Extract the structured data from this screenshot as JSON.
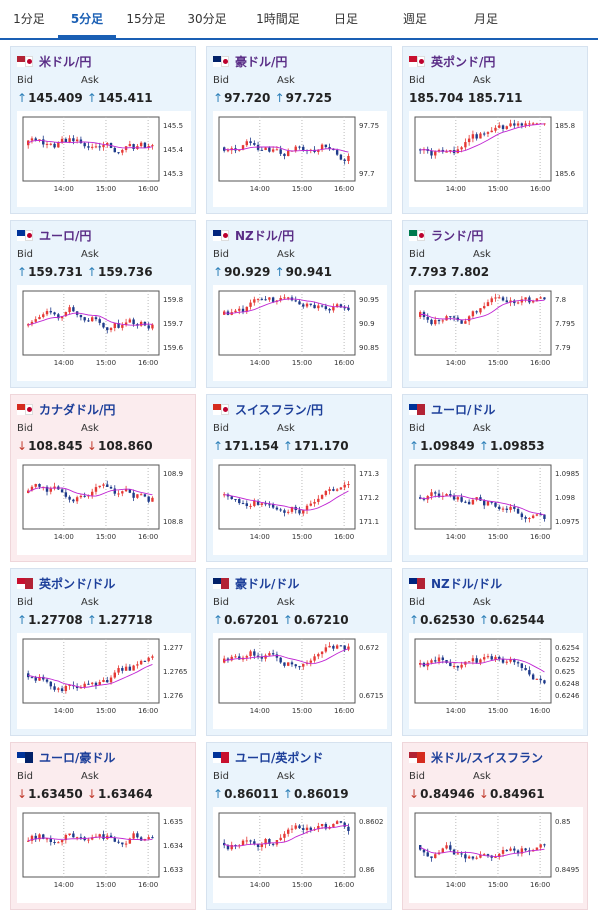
{
  "tabs": [
    {
      "label": "1分足"
    },
    {
      "label": "5分足",
      "active": true
    },
    {
      "label": "15分足"
    },
    {
      "label": "30分足"
    },
    {
      "label": "1時間足"
    },
    {
      "label": "日足"
    },
    {
      "label": "週足"
    },
    {
      "label": "月足"
    }
  ],
  "labels": {
    "bid": "Bid",
    "ask": "Ask"
  },
  "colors": {
    "up_bg": "#eaf4fc",
    "down_bg": "#fbecee",
    "candle_up": "#e53935",
    "candle_down": "#1e3a8a",
    "ma": "#c026d3",
    "arrow_up": "#2c7fb8",
    "arrow_down": "#c0392b"
  },
  "cards": [
    {
      "pair": "米ドル/円",
      "flag": "us-jp-flag-icon",
      "dir": "up",
      "bid": "145.409",
      "ask": "145.411",
      "ticks": [
        "145.5",
        "145.4",
        "145.3"
      ],
      "times": [
        "14:00",
        "15:00",
        "16:00"
      ],
      "seed": 1
    },
    {
      "pair": "豪ドル/円",
      "flag": "au-jp-flag-icon",
      "dir": "up",
      "bid": "97.720",
      "ask": "97.725",
      "ticks": [
        "97.75",
        "97.7"
      ],
      "times": [
        "14:00",
        "15:00",
        "16:00"
      ],
      "seed": 2
    },
    {
      "pair": "英ポンド/円",
      "flag": "gb-jp-flag-icon",
      "dir": "none",
      "bid": "185.704",
      "ask": "185.711",
      "ticks": [
        "185.8",
        "185.6"
      ],
      "times": [
        "14:00",
        "15:00",
        "16:00"
      ],
      "seed": 3
    },
    {
      "pair": "ユーロ/円",
      "flag": "eu-jp-flag-icon",
      "dir": "up",
      "bid": "159.731",
      "ask": "159.736",
      "ticks": [
        "159.8",
        "159.7",
        "159.6"
      ],
      "times": [
        "14:00",
        "15:00",
        "16:00"
      ],
      "seed": 4
    },
    {
      "pair": "NZドル/円",
      "flag": "nz-jp-flag-icon",
      "dir": "up",
      "bid": "90.929",
      "ask": "90.941",
      "ticks": [
        "90.95",
        "90.9",
        "90.85"
      ],
      "times": [
        "14:00",
        "15:00",
        "16:00"
      ],
      "seed": 5
    },
    {
      "pair": "ランド/円",
      "flag": "za-jp-flag-icon",
      "dir": "none",
      "bid": "7.793",
      "ask": "7.802",
      "ticks": [
        "7.8",
        "7.795",
        "7.79"
      ],
      "times": [
        "14:00",
        "15:00",
        "16:00"
      ],
      "seed": 6
    },
    {
      "pair": "カナダドル/円",
      "flag": "ca-jp-flag-icon",
      "dir": "down",
      "bid": "108.845",
      "ask": "108.860",
      "ticks": [
        "108.9",
        "108.8"
      ],
      "times": [
        "14:00",
        "15:00",
        "16:00"
      ],
      "seed": 7
    },
    {
      "pair": "スイスフラン/円",
      "flag": "ch-jp-flag-icon",
      "dir": "up",
      "bid": "171.154",
      "ask": "171.170",
      "ticks": [
        "171.3",
        "171.2",
        "171.1"
      ],
      "times": [
        "14:00",
        "15:00",
        "16:00"
      ],
      "seed": 8
    },
    {
      "pair": "ユーロ/ドル",
      "flag": "eu-us-flag-icon",
      "dir": "up",
      "bid": "1.09849",
      "ask": "1.09853",
      "ticks": [
        "1.0985",
        "1.098",
        "1.0975"
      ],
      "times": [
        "14:00",
        "15:00",
        "16:00"
      ],
      "seed": 9
    },
    {
      "pair": "英ポンド/ドル",
      "flag": "gb-us-flag-icon",
      "dir": "up",
      "bid": "1.27708",
      "ask": "1.27718",
      "ticks": [
        "1.277",
        "1.2765",
        "1.276"
      ],
      "times": [
        "14:00",
        "15:00",
        "16:00"
      ],
      "seed": 10
    },
    {
      "pair": "豪ドル/ドル",
      "flag": "au-us-flag-icon",
      "dir": "up",
      "bid": "0.67201",
      "ask": "0.67210",
      "ticks": [
        "0.672",
        "0.6715"
      ],
      "times": [
        "14:00",
        "15:00",
        "16:00"
      ],
      "seed": 11
    },
    {
      "pair": "NZドル/ドル",
      "flag": "nz-us-flag-icon",
      "dir": "up",
      "bid": "0.62530",
      "ask": "0.62544",
      "ticks": [
        "0.6254",
        "0.6252",
        "0.625",
        "0.6248",
        "0.6246"
      ],
      "times": [
        "14:00",
        "15:00",
        "16:00"
      ],
      "seed": 12
    },
    {
      "pair": "ユーロ/豪ドル",
      "flag": "eu-au-flag-icon",
      "dir": "down",
      "bid": "1.63450",
      "ask": "1.63464",
      "ticks": [
        "1.635",
        "1.634",
        "1.633"
      ],
      "times": [
        "14:00",
        "15:00",
        "16:00"
      ],
      "seed": 13
    },
    {
      "pair": "ユーロ/英ポンド",
      "flag": "eu-gb-flag-icon",
      "dir": "up",
      "bid": "0.86011",
      "ask": "0.86019",
      "ticks": [
        "0.8602",
        "0.86"
      ],
      "times": [
        "14:00",
        "15:00",
        "16:00"
      ],
      "seed": 14
    },
    {
      "pair": "米ドル/スイスフラン",
      "flag": "us-ch-flag-icon",
      "dir": "down",
      "bid": "0.84946",
      "ask": "0.84961",
      "ticks": [
        "0.85",
        "0.8495"
      ],
      "times": [
        "14:00",
        "15:00",
        "16:00"
      ],
      "seed": 15
    }
  ]
}
